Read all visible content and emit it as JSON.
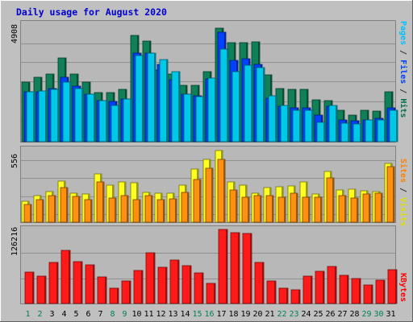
{
  "chart_data": {
    "type": "bar",
    "title": "Daily usage for August 2020",
    "days": [
      "1",
      "2",
      "3",
      "4",
      "5",
      "6",
      "7",
      "8",
      "9",
      "10",
      "11",
      "12",
      "13",
      "14",
      "15",
      "16",
      "17",
      "18",
      "19",
      "20",
      "21",
      "22",
      "23",
      "24",
      "25",
      "26",
      "27",
      "28",
      "29",
      "30",
      "31"
    ],
    "weekend_days": [
      "1",
      "2",
      "8",
      "9",
      "15",
      "16",
      "22",
      "23",
      "29",
      "30"
    ],
    "top_panel": {
      "ymax_label": "4908",
      "ymax": 4908,
      "axis_labels": [
        {
          "text": "Pages",
          "color": "#00c0ff"
        },
        {
          "text": " / ",
          "color": "#333333"
        },
        {
          "text": "Files",
          "color": "#0040ff"
        },
        {
          "text": " / ",
          "color": "#333333"
        },
        {
          "text": "Hits",
          "color": "#007050"
        }
      ],
      "series": [
        {
          "name": "Hits",
          "color": "#108058",
          "values": [
            2450,
            2640,
            2780,
            3460,
            2790,
            2450,
            2030,
            2030,
            2150,
            4380,
            4130,
            2950,
            2770,
            2320,
            2330,
            2900,
            4670,
            4070,
            4070,
            4100,
            2740,
            2200,
            2160,
            2160,
            1730,
            1700,
            1300,
            1100,
            1280,
            1270,
            2050
          ]
        },
        {
          "name": "Files",
          "color": "#0040ff",
          "values": [
            2050,
            2050,
            2200,
            2650,
            2300,
            1950,
            1700,
            1650,
            1750,
            3650,
            3650,
            3200,
            2550,
            1950,
            1900,
            2600,
            4500,
            3350,
            3400,
            3200,
            1800,
            1450,
            1400,
            1400,
            1100,
            1450,
            900,
            850,
            900,
            950,
            1400
          ]
        },
        {
          "name": "Pages",
          "color": "#00c8e8",
          "values": [
            2050,
            2100,
            2150,
            2450,
            2200,
            1950,
            1700,
            1500,
            1750,
            3550,
            3660,
            3370,
            2900,
            1950,
            1850,
            2630,
            3830,
            2870,
            3140,
            3050,
            1900,
            1500,
            1300,
            1300,
            780,
            1500,
            760,
            740,
            900,
            900,
            1290
          ]
        }
      ]
    },
    "mid_panel": {
      "ymax_label": "556",
      "ymax": 556,
      "axis_labels": [
        {
          "text": "Sites",
          "color": "#ff8000"
        },
        {
          "text": " / ",
          "color": "#333333"
        },
        {
          "text": "Visits",
          "color": "#e0e000"
        }
      ],
      "series": [
        {
          "name": "Visits",
          "color": "#ffff20",
          "values": [
            160,
            200,
            230,
            310,
            220,
            210,
            360,
            280,
            305,
            295,
            225,
            215,
            220,
            275,
            400,
            470,
            540,
            300,
            275,
            220,
            260,
            265,
            270,
            300,
            210,
            380,
            240,
            250,
            235,
            230,
            440
          ]
        },
        {
          "name": "Sites",
          "color": "#ff9010",
          "values": [
            130,
            170,
            200,
            260,
            195,
            170,
            300,
            180,
            200,
            170,
            200,
            170,
            175,
            225,
            320,
            405,
            470,
            240,
            190,
            200,
            200,
            190,
            220,
            190,
            185,
            330,
            200,
            180,
            210,
            220,
            420
          ]
        }
      ]
    },
    "bot_panel": {
      "ymax_label": "126216",
      "ymax": 126216,
      "axis_labels": [
        {
          "text": "KBytes",
          "color": "#ff0000"
        }
      ],
      "series": [
        {
          "name": "KBytes",
          "color": "#ff1a1a",
          "values": [
            52000,
            45000,
            68000,
            88000,
            70000,
            64000,
            44000,
            25000,
            38000,
            55000,
            85000,
            60000,
            72000,
            63000,
            51000,
            34000,
            124000,
            118000,
            117000,
            68000,
            38000,
            26000,
            23000,
            45000,
            54000,
            62000,
            47000,
            41000,
            31000,
            39000,
            56000
          ]
        }
      ]
    }
  }
}
